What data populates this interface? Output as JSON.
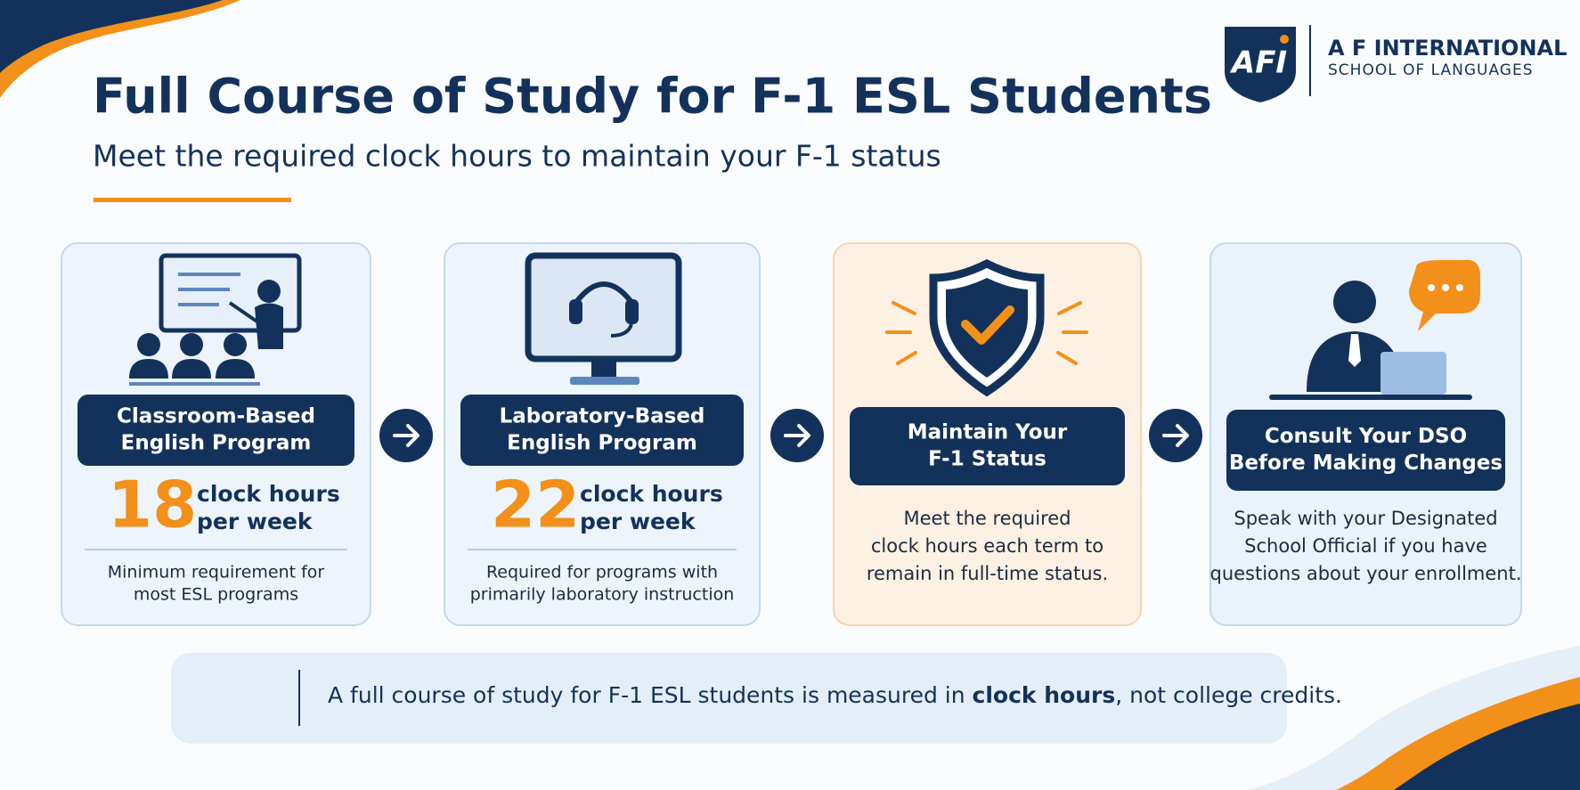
{
  "header": {
    "title": "Full Course of Study for F-1 ESL Students",
    "subtitle": "Meet the required clock hours to maintain your F-1 status"
  },
  "logo": {
    "mark": "AFI",
    "name": "A F INTERNATIONAL",
    "tagline": "SCHOOL OF LANGUAGES"
  },
  "cards": [
    {
      "title_lines": [
        "Classroom-Based",
        "English Program"
      ],
      "hours": 18,
      "unit_lines": [
        "clock hours",
        "per week"
      ],
      "note_lines": [
        "Minimum requirement for",
        "most ESL programs"
      ]
    },
    {
      "title_lines": [
        "Laboratory-Based",
        "English Program"
      ],
      "hours": 22,
      "unit_lines": [
        "clock hours",
        "per week"
      ],
      "note_lines": [
        "Required for programs with",
        "primarily laboratory instruction"
      ]
    },
    {
      "title_lines": [
        "Maintain Your",
        "F-1 Status"
      ],
      "description_lines": [
        "Meet the required",
        "clock hours each term to",
        "remain in full-time status."
      ]
    },
    {
      "title_lines": [
        "Consult Your DSO",
        "Before Making Changes"
      ],
      "description_lines": [
        "Speak with your Designated",
        "School Official if you have",
        "questions about your enrollment."
      ]
    }
  ],
  "footer": {
    "text_before": "A full course of study for F-1 ESL students is measured in ",
    "emphasis": "clock hours",
    "text_after": ", not college credits."
  }
}
